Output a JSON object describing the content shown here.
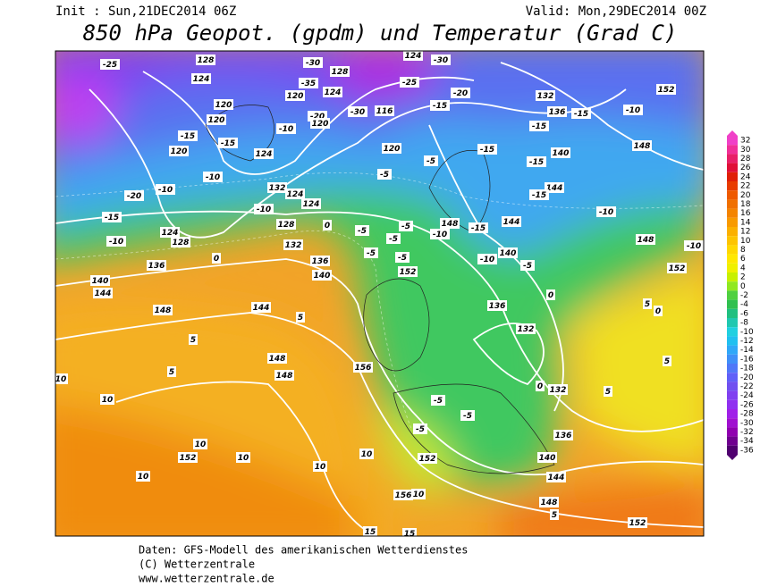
{
  "header": {
    "init": "Init : Sun,21DEC2014 06Z",
    "valid": "Valid: Mon,29DEC2014 00Z",
    "title": "850 hPa Geopot. (gpdm) und Temperatur (Grad C)"
  },
  "footer": [
    "Daten: GFS-Modell des amerikanischen Wetterdienstes",
    "(C) Wetterzentrale",
    "www.wetterzentrale.de"
  ],
  "legend": {
    "values": [
      32,
      30,
      28,
      26,
      24,
      22,
      20,
      18,
      16,
      14,
      12,
      10,
      8,
      6,
      4,
      2,
      0,
      -2,
      -4,
      -6,
      -8,
      -10,
      -12,
      -14,
      -16,
      -18,
      -20,
      -22,
      -24,
      -26,
      -28,
      -30,
      -32,
      -34,
      -36
    ],
    "colors": [
      "#f040c8",
      "#f03098",
      "#e82068",
      "#e01038",
      "#e02008",
      "#e83c00",
      "#ee5a00",
      "#f07000",
      "#f48400",
      "#f89a00",
      "#fbb000",
      "#fdc400",
      "#ffd800",
      "#ffe800",
      "#f0f000",
      "#c8f000",
      "#90e820",
      "#50d040",
      "#30c050",
      "#20c080",
      "#20c8b0",
      "#20d0e0",
      "#20c0f0",
      "#30a8f8",
      "#4090f8",
      "#5078f8",
      "#6060f8",
      "#7050f0",
      "#8040f0",
      "#9030f0",
      "#a020e8",
      "#a010d0",
      "#9000b0",
      "#700090",
      "#500070"
    ]
  },
  "map": {
    "labels": [
      128,
      -30,
      128,
      124,
      -30,
      -25,
      124,
      120,
      120,
      -35,
      124,
      120,
      -30,
      116,
      -25,
      -20,
      -15,
      132,
      152,
      136,
      -15,
      -10,
      -10,
      -20,
      120,
      -15,
      120,
      -15,
      124,
      120,
      -15,
      -15,
      140,
      148,
      -15,
      -20,
      -10,
      -10,
      -5,
      -5,
      132,
      124,
      124,
      144,
      -15,
      -10,
      -10,
      128,
      -15,
      124,
      128,
      0,
      -5,
      -5,
      148,
      -10,
      -15,
      144,
      148,
      -10,
      -10,
      132,
      -5,
      136,
      0,
      136,
      140,
      -5,
      -5,
      152,
      -10,
      140,
      -5,
      152,
      140,
      144,
      148,
      144,
      5,
      136,
      0,
      5,
      0,
      5,
      148,
      148,
      156,
      132,
      5,
      10,
      5,
      0,
      132,
      5,
      10,
      -5,
      -5,
      -5,
      136,
      10,
      152,
      10,
      10,
      152,
      140,
      10,
      10,
      144,
      156,
      10,
      148,
      5,
      152,
      15,
      15
    ]
  }
}
